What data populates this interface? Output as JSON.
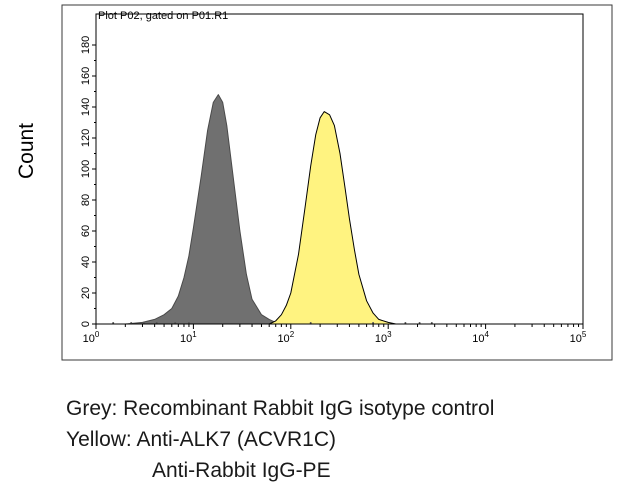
{
  "chart_data": {
    "type": "area",
    "title": "Plot P02, gated on P01.R1",
    "xlabel": "",
    "ylabel": "Count",
    "x_scale": "log",
    "xlim": [
      1,
      100000
    ],
    "ylim": [
      0,
      200
    ],
    "x_ticks": [
      {
        "base": "10",
        "exp": "0",
        "value": 1
      },
      {
        "base": "10",
        "exp": "1",
        "value": 10
      },
      {
        "base": "10",
        "exp": "2",
        "value": 100
      },
      {
        "base": "10",
        "exp": "3",
        "value": 1000
      },
      {
        "base": "10",
        "exp": "4",
        "value": 10000
      },
      {
        "base": "10",
        "exp": "5",
        "value": 100000
      }
    ],
    "y_ticks": [
      "0",
      "20",
      "40",
      "60",
      "80",
      "100",
      "120",
      "140",
      "160",
      "180"
    ],
    "y_tick_values": [
      0,
      20,
      40,
      60,
      80,
      100,
      120,
      140,
      160,
      180
    ],
    "series": [
      {
        "fill": "#707070",
        "stroke": "#4a4a4a",
        "x": [
          1,
          2,
          3,
          4,
          5,
          6,
          7,
          8,
          9,
          10,
          12,
          14,
          16,
          18,
          20,
          22,
          25,
          30,
          35,
          40,
          50,
          60,
          70,
          80,
          100
        ],
        "y": [
          0,
          0,
          1,
          3,
          6,
          10,
          18,
          30,
          44,
          62,
          95,
          125,
          143,
          148,
          143,
          128,
          100,
          60,
          32,
          16,
          6,
          3,
          1,
          0.5,
          0
        ]
      },
      {
        "fill": "#fff380",
        "stroke": "#000000",
        "x": [
          60,
          70,
          80,
          90,
          100,
          120,
          140,
          160,
          180,
          200,
          220,
          250,
          280,
          320,
          360,
          400,
          450,
          500,
          600,
          700,
          800,
          1000,
          1200
        ],
        "y": [
          0,
          2,
          6,
          12,
          20,
          45,
          75,
          102,
          122,
          133,
          137,
          135,
          128,
          110,
          88,
          68,
          48,
          32,
          15,
          7,
          3,
          1,
          0
        ]
      }
    ],
    "captions": [
      "Grey: Recombinant Rabbit IgG isotype control",
      "Yellow: Anti-ALK7 (ACVR1C)",
      "Anti-Rabbit IgG-PE"
    ]
  }
}
